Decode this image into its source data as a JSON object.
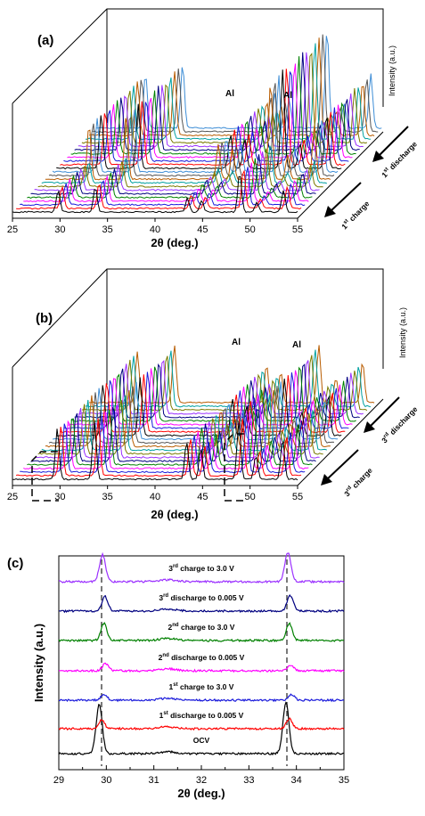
{
  "chart_data": [
    {
      "panel": "(a)",
      "type": "line",
      "style": "3D waterfall of stacked XRD patterns",
      "x_ticks": [
        "25",
        "30",
        "35",
        "40",
        "45",
        "50",
        "55"
      ],
      "xlim": [
        25,
        55
      ],
      "xlabel": "2θ (deg.)",
      "zlabel": "Intensity (a.u.)",
      "annotations": [
        {
          "text": "Al",
          "x": 45.0
        },
        {
          "text": "Al",
          "x": 50.8
        }
      ],
      "peaks": [
        {
          "x": 29.9,
          "rel_height": 0.55
        },
        {
          "x": 33.8,
          "rel_height": 0.65
        },
        {
          "x": 43.5,
          "rel_height": 0.35
        },
        {
          "x": 45.0,
          "rel_height": 0.3
        },
        {
          "x": 49.0,
          "rel_height": 1.0
        },
        {
          "x": 50.8,
          "rel_height": 0.25
        },
        {
          "x": 53.6,
          "rel_height": 0.55
        }
      ],
      "depth_groups": [
        {
          "first": 0,
          "count": 9,
          "shift_scale": 0.3,
          "gain": 0.4
        },
        {
          "first": 9,
          "count": 15,
          "shift_scale": 1.0,
          "gain": 1.0
        }
      ],
      "n_patterns": 24,
      "depth_arrows": [
        {
          "label_main": "1",
          "label_sup": "st",
          "label_rest": " charge"
        },
        {
          "label_main": "1",
          "label_sup": "st",
          "label_rest": " discharge"
        }
      ]
    },
    {
      "panel": "(b)",
      "type": "line",
      "style": "3D waterfall of stacked XRD patterns",
      "x_ticks": [
        "25",
        "30",
        "35",
        "40",
        "45",
        "50",
        "55"
      ],
      "xlim": [
        25,
        55
      ],
      "xlabel": "2θ (deg.)",
      "zlabel": "Intensity (a.u.)",
      "annotations": [
        {
          "text": "Al",
          "x": 45.0
        },
        {
          "text": "Al",
          "x": 50.8
        }
      ],
      "peaks": [
        {
          "x": 29.9,
          "rel_height": 0.75
        },
        {
          "x": 33.8,
          "rel_height": 0.85
        },
        {
          "x": 43.5,
          "rel_height": 0.55
        },
        {
          "x": 45.0,
          "rel_height": 0.45
        },
        {
          "x": 49.0,
          "rel_height": 0.85
        },
        {
          "x": 50.8,
          "rel_height": 0.35
        },
        {
          "x": 53.6,
          "rel_height": 0.6
        }
      ],
      "depth_groups": [
        {
          "first": 0,
          "count": 22,
          "shift_scale": 0.6,
          "gain": 0.8
        }
      ],
      "n_patterns": 22,
      "depth_arrows": [
        {
          "label_main": "3",
          "label_sup": "rd",
          "label_rest": " charge"
        },
        {
          "label_main": "3",
          "label_sup": "rd",
          "label_rest": " discharge"
        }
      ]
    },
    {
      "panel": "(c)",
      "type": "line",
      "xlabel": "2θ (deg.)",
      "ylabel": "Intensity (a.u.)",
      "xlim": [
        29,
        35
      ],
      "x_ticks": [
        "29",
        "30",
        "31",
        "32",
        "33",
        "34",
        "35"
      ],
      "reference_lines_x": [
        29.9,
        33.8
      ],
      "series": [
        {
          "name": "OCV",
          "color": "#000000",
          "peaks": [
            {
              "x": 29.85,
              "h": 1.0
            },
            {
              "x": 33.78,
              "h": 1.05
            }
          ]
        },
        {
          "name_main": "1",
          "name_sup": "st",
          "name_rest": " discharge to 0.005 V",
          "color": "#ff0000",
          "peaks": [
            {
              "x": 29.9,
              "h": 0.18
            },
            {
              "x": 33.85,
              "h": 0.2
            }
          ]
        },
        {
          "name_main": "1",
          "name_sup": "st",
          "name_rest": " charge to 3.0 V",
          "color": "#1a1adb",
          "peaks": [
            {
              "x": 29.95,
              "h": 0.12
            },
            {
              "x": 33.9,
              "h": 0.12
            }
          ]
        },
        {
          "name_main": "2",
          "name_sup": "nd",
          "name_rest": " discharge to 0.005 V",
          "color": "#ff00ff",
          "peaks": [
            {
              "x": 29.98,
              "h": 0.15
            },
            {
              "x": 33.88,
              "h": 0.12
            }
          ]
        },
        {
          "name_main": "2",
          "name_sup": "nd",
          "name_rest": " charge to 3.0 V",
          "color": "#008000",
          "peaks": [
            {
              "x": 29.95,
              "h": 0.35
            },
            {
              "x": 33.85,
              "h": 0.35
            }
          ]
        },
        {
          "name_main": "3",
          "name_sup": "rd",
          "name_rest": " discharge to 0.005 V",
          "color": "#000080",
          "peaks": [
            {
              "x": 29.97,
              "h": 0.3
            },
            {
              "x": 33.87,
              "h": 0.32
            }
          ]
        },
        {
          "name_main": "3",
          "name_sup": "rd",
          "name_rest": " charge to 3.0 V",
          "color": "#9b30ff",
          "peaks": [
            {
              "x": 29.92,
              "h": 0.55
            },
            {
              "x": 33.82,
              "h": 0.6
            }
          ]
        }
      ]
    }
  ],
  "colors": [
    "#000000",
    "#ff0000",
    "#1a1adb",
    "#ff00ff",
    "#008000",
    "#000080",
    "#9b30ff",
    "#7a7a00",
    "#00a0a0",
    "#b85c00",
    "#555555",
    "#3d8dd6"
  ]
}
